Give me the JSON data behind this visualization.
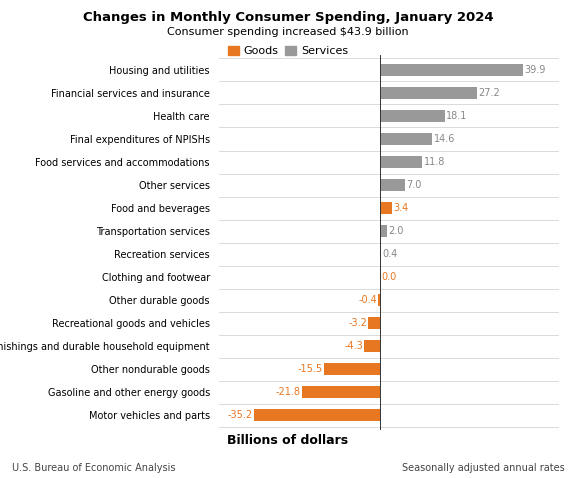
{
  "title": "Changes in Monthly Consumer Spending, January 2024",
  "subtitle": "Consumer spending increased $43.9 billion",
  "categories": [
    "Housing and utilities",
    "Financial services and insurance",
    "Health care",
    "Final expenditures of NPISHs",
    "Food services and accommodations",
    "Other services",
    "Food and beverages",
    "Transportation services",
    "Recreation services",
    "Clothing and footwear",
    "Other durable goods",
    "Recreational goods and vehicles",
    "Furnishings and durable household equipment",
    "Other nondurable goods",
    "Gasoline and other energy goods",
    "Motor vehicles and parts"
  ],
  "values": [
    39.9,
    27.2,
    18.1,
    14.6,
    11.8,
    7.0,
    3.4,
    2.0,
    0.4,
    0.0,
    -0.4,
    -3.2,
    -4.3,
    -15.5,
    -21.8,
    -35.2
  ],
  "bar_types": [
    "services",
    "services",
    "services",
    "services",
    "services",
    "services",
    "goods",
    "services",
    "services",
    "goods",
    "goods",
    "goods",
    "goods",
    "goods",
    "goods",
    "goods"
  ],
  "goods_color": "#E87722",
  "services_color": "#999999",
  "label_color_goods": "#E87722",
  "label_color_services": "#888888",
  "background_color": "#FFFFFF",
  "footer_left": "U.S. Bureau of Economic Analysis",
  "footer_right": "Seasonally adjusted annual rates",
  "xlabel": "Billions of dollars",
  "legend_goods": "Goods",
  "legend_services": "Services",
  "xlim": [
    -45,
    50
  ]
}
